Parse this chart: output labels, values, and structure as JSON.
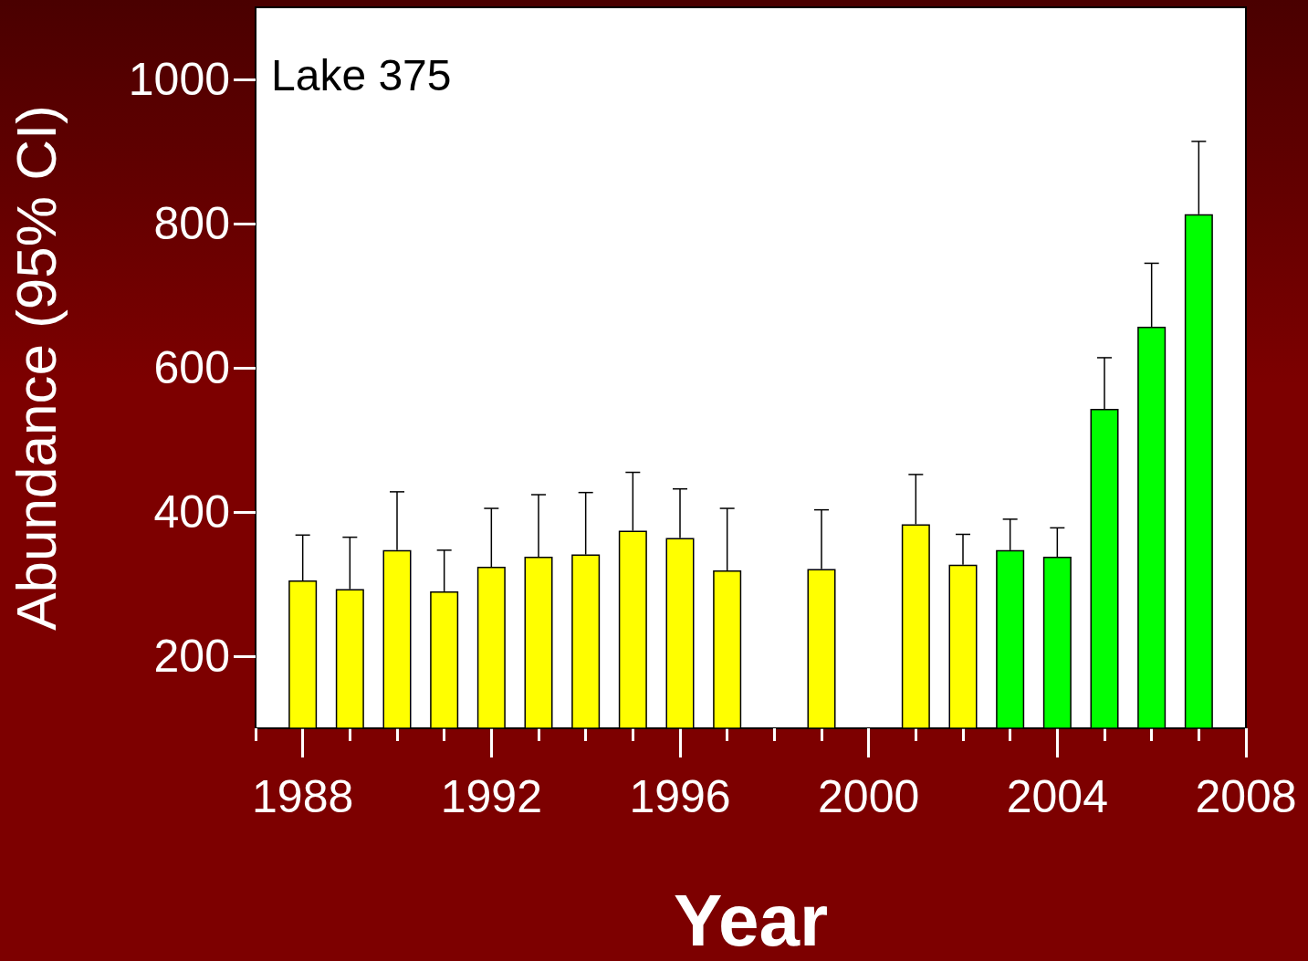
{
  "chart_data": {
    "type": "bar",
    "xlabel": "Year",
    "ylabel": "Abundance (95% CI)",
    "annotations": [
      "Lake 375"
    ],
    "x": [
      1988,
      1989,
      1990,
      1991,
      1992,
      1993,
      1994,
      1995,
      1996,
      1997,
      1998,
      1999,
      2000,
      2001,
      2002,
      2003,
      2004,
      2005,
      2006,
      2007
    ],
    "values": [
      305,
      293,
      347,
      290,
      324,
      338,
      341,
      374,
      364,
      319,
      null,
      321,
      null,
      383,
      327,
      347,
      338,
      543,
      657,
      813
    ],
    "errors": [
      [
        305,
        368
      ],
      [
        293,
        365
      ],
      [
        347,
        428
      ],
      [
        290,
        347
      ],
      [
        324,
        405
      ],
      [
        338,
        424
      ],
      [
        341,
        427
      ],
      [
        374,
        455
      ],
      [
        364,
        432
      ],
      [
        319,
        405
      ],
      null,
      [
        321,
        403
      ],
      null,
      [
        383,
        452
      ],
      [
        327,
        369
      ],
      [
        347,
        390
      ],
      [
        338,
        378
      ],
      [
        543,
        614
      ],
      [
        657,
        745
      ],
      [
        813,
        914
      ]
    ],
    "colors": [
      "#ffff00",
      "#ffff00",
      "#ffff00",
      "#ffff00",
      "#ffff00",
      "#ffff00",
      "#ffff00",
      "#ffff00",
      "#ffff00",
      "#ffff00",
      "#ffff00",
      "#ffff00",
      "#ffff00",
      "#ffff00",
      "#ffff00",
      "#00ff00",
      "#00ff00",
      "#00ff00",
      "#00ff00",
      "#00ff00"
    ],
    "xlim": [
      1987,
      2008
    ],
    "xticks": [
      {
        "value": 1987,
        "label": null
      },
      1988,
      {
        "value": 1989,
        "label": null
      },
      {
        "value": 1990,
        "label": null
      },
      {
        "value": 1991,
        "label": null
      },
      1992,
      {
        "value": 1993,
        "label": null
      },
      {
        "value": 1994,
        "label": null
      },
      {
        "value": 1995,
        "label": null
      },
      1996,
      {
        "value": 1997,
        "label": null
      },
      {
        "value": 1998,
        "label": null
      },
      {
        "value": 1999,
        "label": null
      },
      2000,
      {
        "value": 2001,
        "label": null
      },
      {
        "value": 2002,
        "label": null
      },
      {
        "value": 2003,
        "label": null
      },
      2004,
      {
        "value": 2005,
        "label": null
      },
      {
        "value": 2006,
        "label": null
      },
      {
        "value": 2007,
        "label": null
      },
      2008
    ],
    "ylim": [
      100,
      1100
    ],
    "yticks": [
      200,
      400,
      600,
      800,
      1000
    ],
    "grid": false
  }
}
